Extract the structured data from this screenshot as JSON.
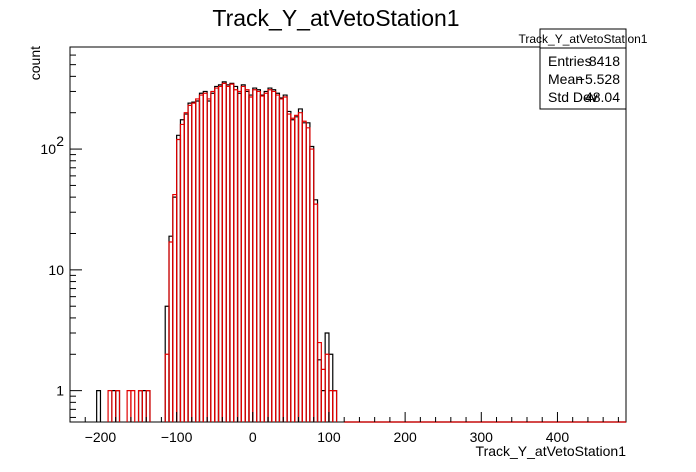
{
  "chart_data": {
    "type": "histogram",
    "title": "Track_Y_atVetoStation1",
    "xlabel": "Track_Y_atVetoStation1",
    "ylabel": "count",
    "xlim": [
      -240,
      490
    ],
    "ylim": [
      0.55,
      700
    ],
    "y_scale": "log",
    "bin_width": 5,
    "x_ticks": [
      -200,
      -100,
      0,
      100,
      200,
      300,
      400
    ],
    "y_ticks": [
      {
        "value": 1,
        "label": "1"
      },
      {
        "value": 10,
        "label": "10"
      },
      {
        "value": 100,
        "label": "10",
        "exp": "2"
      }
    ],
    "series": [
      {
        "name": "Track_Y_atVetoStation1",
        "color": "#000000",
        "bins": [
          [
            -205,
            1
          ],
          [
            -200,
            0
          ],
          [
            -195,
            0
          ],
          [
            -190,
            0
          ],
          [
            -185,
            1
          ],
          [
            -180,
            1
          ],
          [
            -175,
            0
          ],
          [
            -170,
            0
          ],
          [
            -165,
            0
          ],
          [
            -160,
            0
          ],
          [
            -155,
            0
          ],
          [
            -150,
            1
          ],
          [
            -145,
            1
          ],
          [
            -140,
            1
          ],
          [
            -135,
            0
          ],
          [
            -130,
            0
          ],
          [
            -125,
            0
          ],
          [
            -120,
            0
          ],
          [
            -115,
            5
          ],
          [
            -110,
            19
          ],
          [
            -105,
            40
          ],
          [
            -100,
            130
          ],
          [
            -95,
            175
          ],
          [
            -90,
            195
          ],
          [
            -85,
            240
          ],
          [
            -80,
            245
          ],
          [
            -75,
            250
          ],
          [
            -70,
            290
          ],
          [
            -65,
            300
          ],
          [
            -60,
            250
          ],
          [
            -55,
            290
          ],
          [
            -50,
            330
          ],
          [
            -45,
            340
          ],
          [
            -40,
            360
          ],
          [
            -35,
            340
          ],
          [
            -30,
            350
          ],
          [
            -25,
            330
          ],
          [
            -20,
            290
          ],
          [
            -15,
            340
          ],
          [
            -10,
            300
          ],
          [
            -5,
            280
          ],
          [
            0,
            320
          ],
          [
            5,
            310
          ],
          [
            10,
            280
          ],
          [
            15,
            300
          ],
          [
            20,
            320
          ],
          [
            25,
            310
          ],
          [
            30,
            290
          ],
          [
            35,
            265
          ],
          [
            40,
            280
          ],
          [
            45,
            205
          ],
          [
            50,
            175
          ],
          [
            55,
            185
          ],
          [
            60,
            215
          ],
          [
            65,
            165
          ],
          [
            70,
            165
          ],
          [
            75,
            105
          ],
          [
            80,
            38
          ],
          [
            85,
            1.8
          ],
          [
            90,
            1
          ],
          [
            95,
            3
          ],
          [
            100,
            2
          ],
          [
            105,
            1
          ],
          [
            110,
            0
          ],
          [
            115,
            0
          ]
        ]
      },
      {
        "name": "Track_Y_atVetoStation1 (overlay)",
        "color": "#e00000",
        "bins": [
          [
            -205,
            0
          ],
          [
            -200,
            0
          ],
          [
            -195,
            0
          ],
          [
            -190,
            1
          ],
          [
            -185,
            0
          ],
          [
            -180,
            1
          ],
          [
            -175,
            0
          ],
          [
            -170,
            0
          ],
          [
            -165,
            1
          ],
          [
            -160,
            1
          ],
          [
            -155,
            0
          ],
          [
            -150,
            1
          ],
          [
            -145,
            0
          ],
          [
            -140,
            1
          ],
          [
            -135,
            0
          ],
          [
            -130,
            0
          ],
          [
            -125,
            0
          ],
          [
            -120,
            0
          ],
          [
            -115,
            2
          ],
          [
            -110,
            17
          ],
          [
            -105,
            42
          ],
          [
            -100,
            120
          ],
          [
            -95,
            160
          ],
          [
            -90,
            200
          ],
          [
            -85,
            230
          ],
          [
            -80,
            240
          ],
          [
            -75,
            260
          ],
          [
            -70,
            280
          ],
          [
            -65,
            290
          ],
          [
            -60,
            260
          ],
          [
            -55,
            300
          ],
          [
            -50,
            320
          ],
          [
            -45,
            330
          ],
          [
            -40,
            350
          ],
          [
            -35,
            330
          ],
          [
            -30,
            345
          ],
          [
            -25,
            310
          ],
          [
            -20,
            300
          ],
          [
            -15,
            330
          ],
          [
            -10,
            310
          ],
          [
            -5,
            270
          ],
          [
            0,
            310
          ],
          [
            5,
            300
          ],
          [
            10,
            275
          ],
          [
            15,
            290
          ],
          [
            20,
            310
          ],
          [
            25,
            300
          ],
          [
            30,
            280
          ],
          [
            35,
            260
          ],
          [
            40,
            270
          ],
          [
            45,
            195
          ],
          [
            50,
            180
          ],
          [
            55,
            190
          ],
          [
            60,
            200
          ],
          [
            65,
            170
          ],
          [
            70,
            150
          ],
          [
            75,
            100
          ],
          [
            80,
            35
          ],
          [
            85,
            2.5
          ],
          [
            90,
            1.5
          ],
          [
            95,
            2
          ],
          [
            100,
            1
          ],
          [
            105,
            1
          ],
          [
            110,
            0
          ],
          [
            115,
            0
          ]
        ]
      }
    ],
    "stats": {
      "header": "Track_Y_atVetoStation1",
      "rows": [
        {
          "label": "Entries",
          "value": "8418"
        },
        {
          "label": "Mean",
          "value": "−5.528"
        },
        {
          "label": "Std Dev",
          "value": "48.04"
        }
      ]
    },
    "legend_position": "top-right"
  }
}
